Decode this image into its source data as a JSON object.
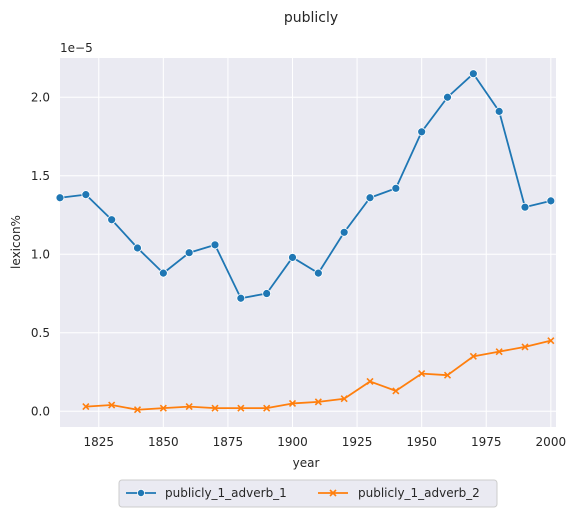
{
  "chart_data": {
    "type": "line",
    "title": "publicly",
    "xlabel": "year",
    "ylabel": "lexicon%",
    "y_offset_label": "1e−5",
    "xlim": [
      1810,
      2002
    ],
    "ylim": [
      -0.1,
      2.25
    ],
    "xticks": [
      1825,
      1850,
      1875,
      1900,
      1925,
      1950,
      1975,
      2000
    ],
    "yticks": [
      0.0,
      0.5,
      1.0,
      1.5,
      2.0
    ],
    "ytick_labels": [
      "0.0",
      "0.5",
      "1.0",
      "1.5",
      "2.0"
    ],
    "grid": true,
    "legend_position": "bottom-center, outside",
    "series": [
      {
        "name": "publicly_1_adverb_1",
        "color": "#1f77b4",
        "marker": "circle",
        "x": [
          1810,
          1820,
          1830,
          1840,
          1850,
          1860,
          1870,
          1880,
          1890,
          1900,
          1910,
          1920,
          1930,
          1940,
          1950,
          1960,
          1970,
          1980,
          1990,
          2000
        ],
        "values": [
          1.36,
          1.38,
          1.22,
          1.04,
          0.88,
          1.01,
          1.06,
          0.72,
          0.75,
          0.98,
          0.88,
          1.14,
          1.36,
          1.42,
          1.78,
          2.0,
          2.15,
          1.91,
          1.3,
          1.34
        ]
      },
      {
        "name": "publicly_1_adverb_2",
        "color": "#ff7f0e",
        "marker": "x",
        "x": [
          1820,
          1830,
          1840,
          1850,
          1860,
          1870,
          1880,
          1890,
          1900,
          1910,
          1920,
          1930,
          1940,
          1950,
          1960,
          1970,
          1980,
          1990,
          2000
        ],
        "values": [
          0.03,
          0.04,
          0.01,
          0.02,
          0.03,
          0.02,
          0.02,
          0.02,
          0.05,
          0.06,
          0.08,
          0.19,
          0.13,
          0.24,
          0.23,
          0.35,
          0.38,
          0.41,
          0.45
        ]
      }
    ]
  }
}
